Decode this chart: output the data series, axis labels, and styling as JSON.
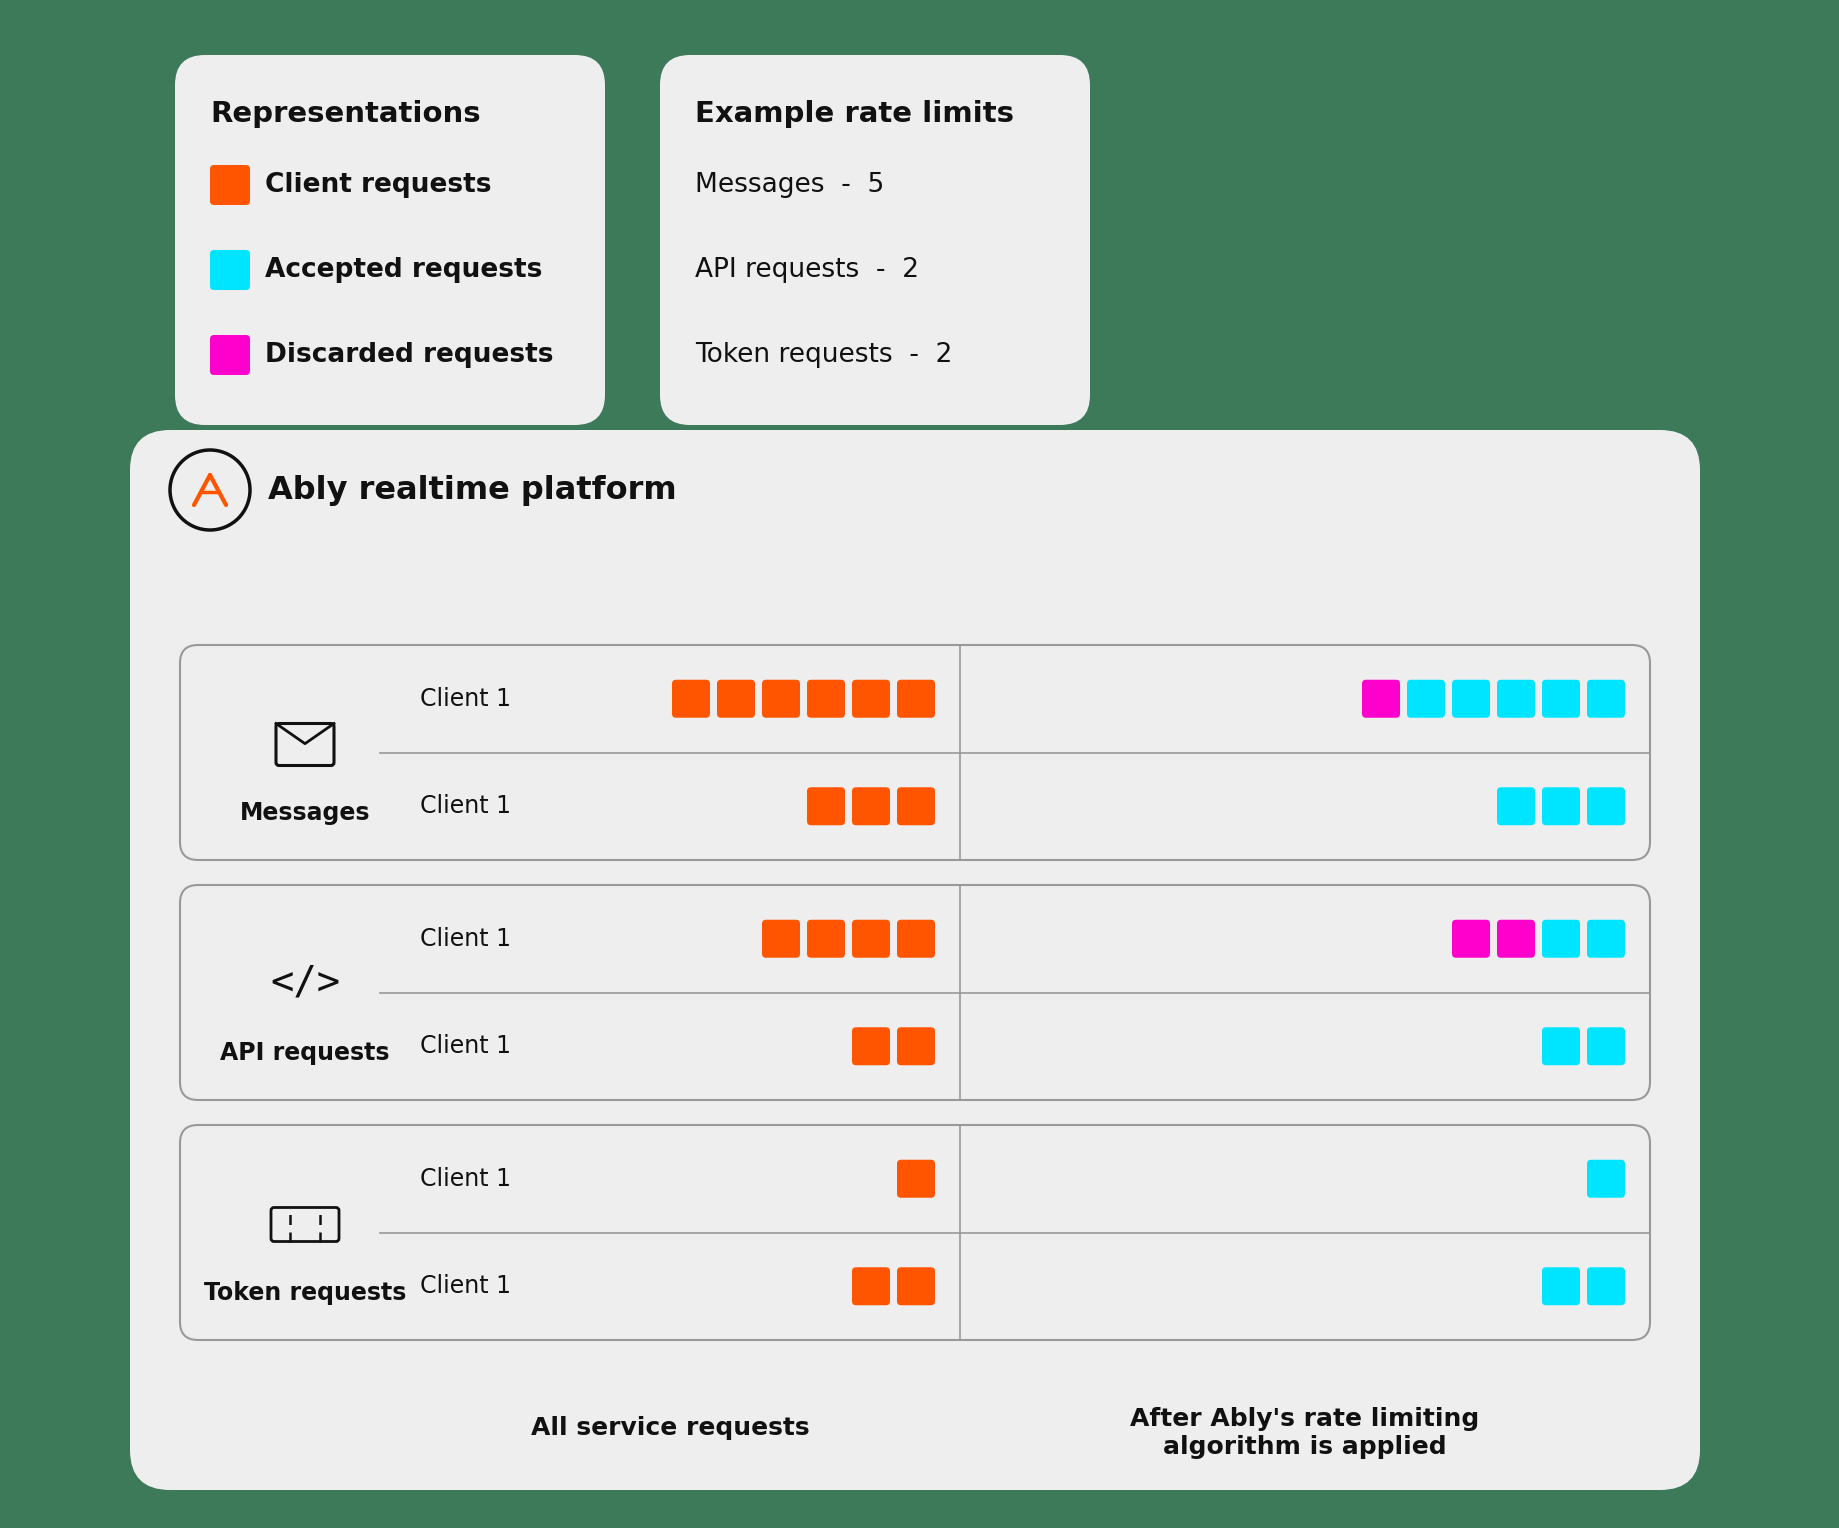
{
  "bg_color": "#3d7a5a",
  "card_color": "#eeeeee",
  "orange": "#FF5500",
  "cyan": "#00E5FF",
  "magenta": "#FF00CC",
  "dark_text": "#111111",
  "gray_border": "#999999",
  "repr_title": "Representations",
  "repr_items": [
    {
      "color": "#FF5500",
      "label": "Client requests"
    },
    {
      "color": "#00E5FF",
      "label": "Accepted requests"
    },
    {
      "color": "#FF00CC",
      "label": "Discarded requests"
    }
  ],
  "limits_title": "Example rate limits",
  "limits_items": [
    "Messages  -  5",
    "API requests  -  2",
    "Token requests  -  2"
  ],
  "platform_title": "Ably realtime platform",
  "sections": [
    {
      "icon": "messages",
      "label": "Messages",
      "rows": [
        {
          "client": "Client 1",
          "left_squares": [
            "orange",
            "orange",
            "orange",
            "orange",
            "orange",
            "orange"
          ],
          "right_squares": [
            "magenta",
            "cyan",
            "cyan",
            "cyan",
            "cyan",
            "cyan"
          ]
        },
        {
          "client": "Client 1",
          "left_squares": [
            "orange",
            "orange",
            "orange"
          ],
          "right_squares": [
            "cyan",
            "cyan",
            "cyan"
          ]
        }
      ]
    },
    {
      "icon": "api",
      "label": "API requests",
      "rows": [
        {
          "client": "Client 1",
          "left_squares": [
            "orange",
            "orange",
            "orange",
            "orange"
          ],
          "right_squares": [
            "magenta",
            "magenta",
            "cyan",
            "cyan"
          ]
        },
        {
          "client": "Client 1",
          "left_squares": [
            "orange",
            "orange"
          ],
          "right_squares": [
            "cyan",
            "cyan"
          ]
        }
      ]
    },
    {
      "icon": "token",
      "label": "Token requests",
      "rows": [
        {
          "client": "Client 1",
          "left_squares": [
            "orange"
          ],
          "right_squares": [
            "cyan"
          ]
        },
        {
          "client": "Client 1",
          "left_squares": [
            "orange",
            "orange"
          ],
          "right_squares": [
            "cyan",
            "cyan"
          ]
        }
      ]
    }
  ],
  "col_label_left": "All service requests",
  "col_label_right": "After Ably's rate limiting\nalgorithm is applied"
}
